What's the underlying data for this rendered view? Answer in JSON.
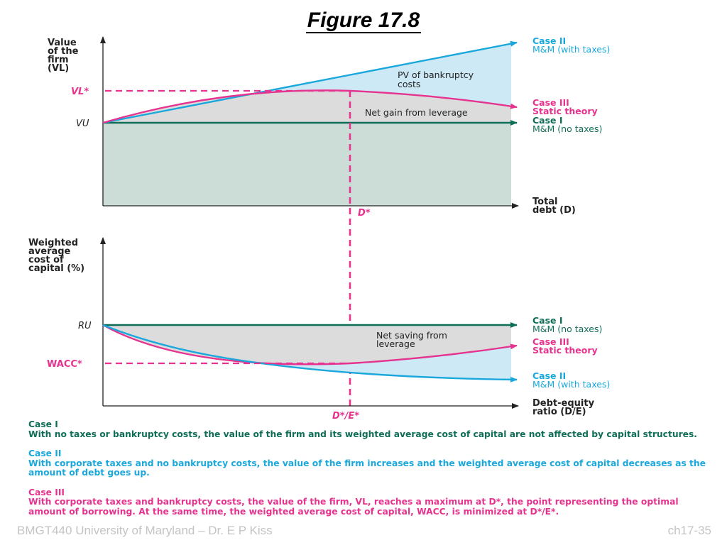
{
  "title": "Figure 17.8",
  "colors": {
    "case1": "#0f6e57",
    "case2": "#1aa8dc",
    "case3": "#e5338f",
    "fill_gray": "#dcdcdc",
    "fill_green": "#ccddd8",
    "fill_blue": "#cde9f6"
  },
  "top_panel": {
    "y_axis_label": [
      "Value",
      "of the",
      "firm",
      "(VL)"
    ],
    "x_axis_label": [
      "Total",
      "debt (D)"
    ],
    "vl_star_label": "VL*",
    "vu_label": "VU",
    "d_star_label": "D*",
    "annotations": {
      "pv_bankruptcy": [
        "PV of bankruptcy",
        "costs"
      ],
      "net_gain": "Net gain from leverage"
    },
    "legend": {
      "case2": [
        "Case II",
        "M&M (with taxes)"
      ],
      "case3": [
        "Case III",
        "Static theory"
      ],
      "case1": [
        "Case I",
        "M&M (no taxes)"
      ]
    }
  },
  "bottom_panel": {
    "y_axis_label": [
      "Weighted",
      "average",
      "cost of",
      "capital (%)"
    ],
    "x_axis_label": [
      "Debt-equity",
      "ratio (D/E)"
    ],
    "ru_label": "RU",
    "wacc_star_label": "WACC*",
    "de_star_label": "D*/E*",
    "annotations": {
      "net_saving": [
        "Net saving from",
        "leverage"
      ]
    },
    "legend": {
      "case1": [
        "Case I",
        "M&M (no taxes)"
      ],
      "case3": [
        "Case III",
        "Static theory"
      ],
      "case2": [
        "Case II",
        "M&M (with taxes)"
      ]
    }
  },
  "notes": [
    {
      "heading": "Case I",
      "text": "With no taxes or bankruptcy costs, the value of the firm and its weighted average cost of capital are not affected by capital structures."
    },
    {
      "heading": "Case II",
      "text": "With corporate taxes and no bankruptcy costs, the value of the firm increases and the weighted average cost of capital decreases as the amount of debt goes up."
    },
    {
      "heading": "Case III",
      "text": "With corporate taxes and bankruptcy costs, the value of the firm, VL, reaches a maximum at D*, the point representing the optimal amount of borrowing. At the same time, the weighted average cost of capital, WACC, is minimized at D*/E*."
    }
  ],
  "footer_left": "BMGT440 University of Maryland – Dr. E P Kiss",
  "footer_right": "ch17-35"
}
